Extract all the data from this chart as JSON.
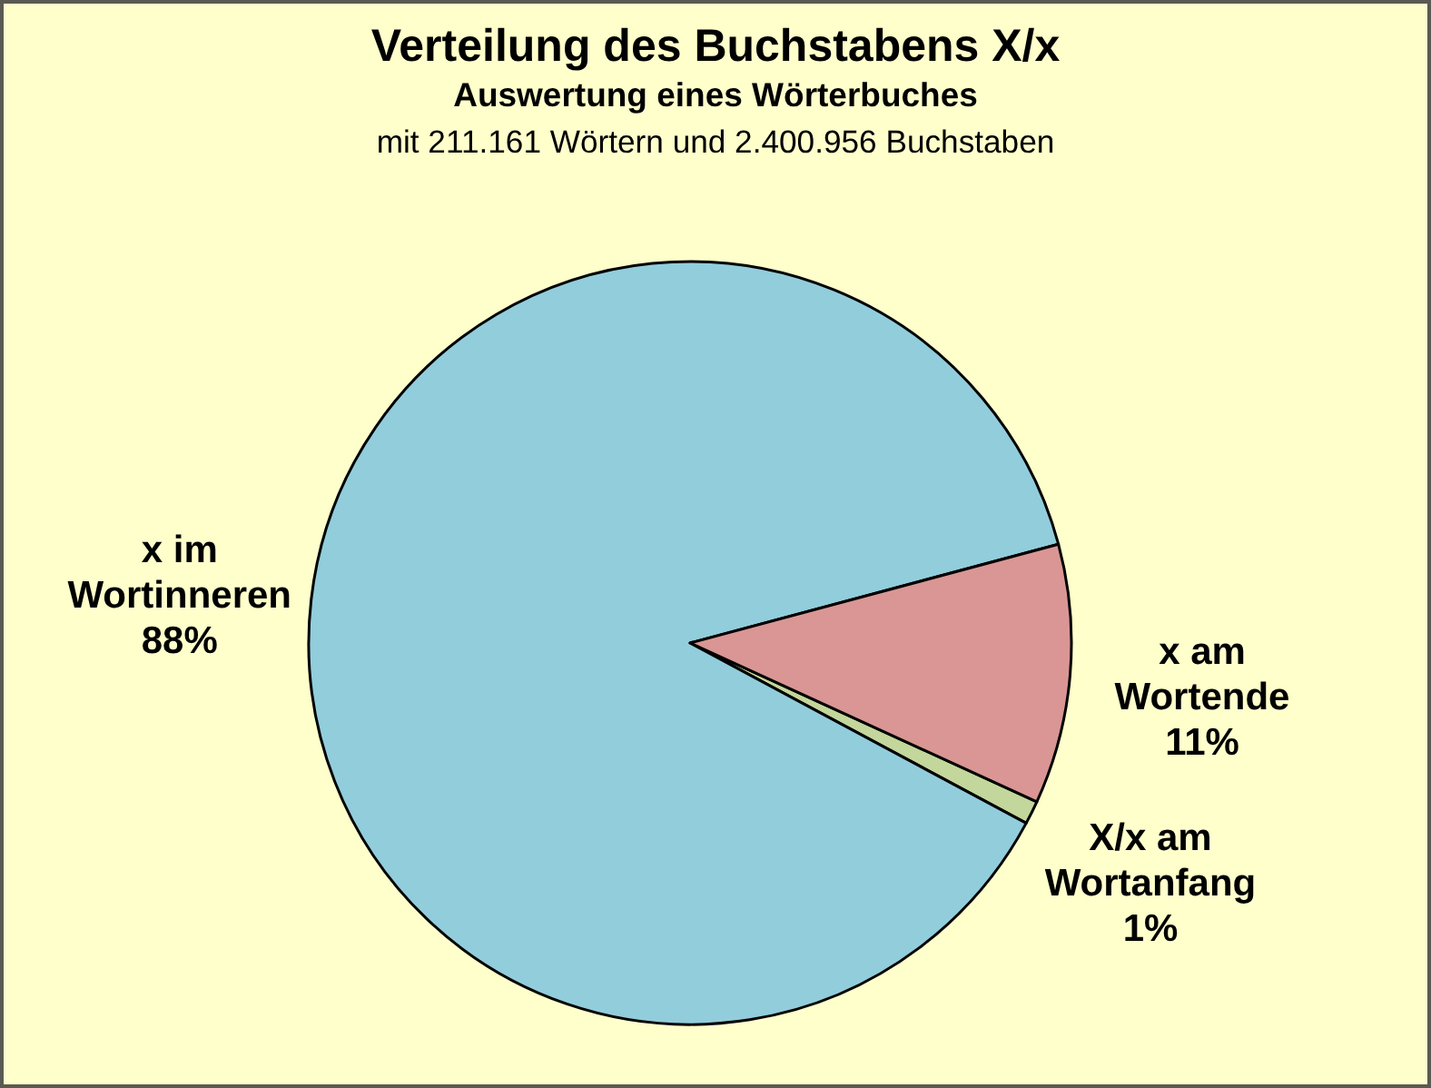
{
  "chart_data": {
    "type": "pie",
    "title": "Verteilung des Buchstabens X/x",
    "subtitle": "Auswertung eines Wörterbuches",
    "annotations": [
      "mit 211.161 Wörtern und 2.400.956 Buchstaben"
    ],
    "categories": [
      "X/x am Wortanfang",
      "x im Wortinneren",
      "x am Wortende"
    ],
    "values": [
      1,
      88,
      11
    ],
    "value_labels": [
      "1%",
      "88%",
      "11%"
    ],
    "colors": [
      "#c3d69b",
      "#92cddc",
      "#d99694"
    ]
  }
}
